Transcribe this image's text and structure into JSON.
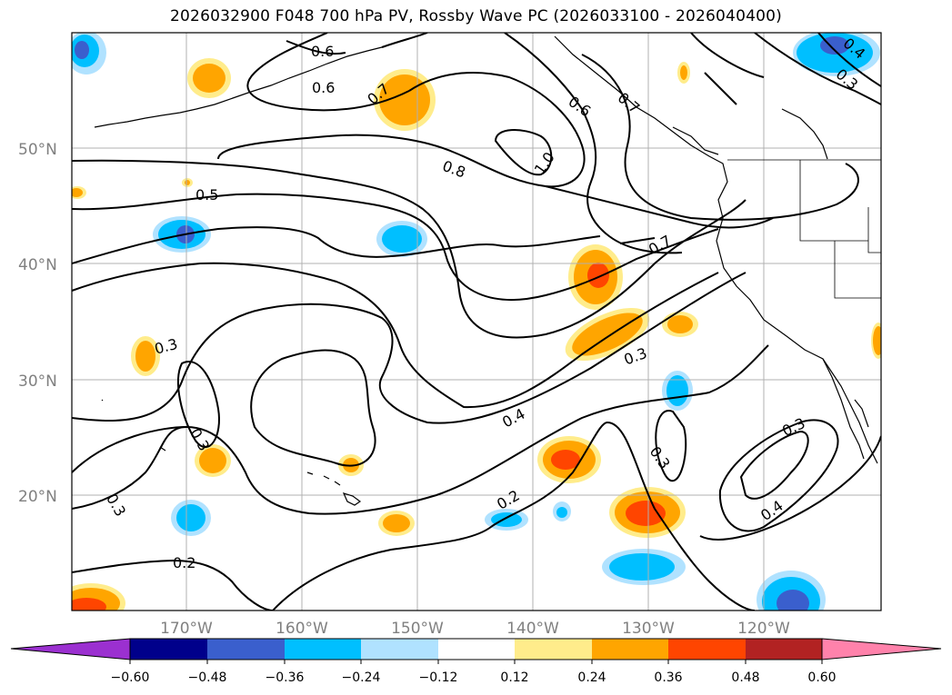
{
  "title": "2026032900 F048 700 hPa PV, Rossby Wave PC (2026033100 - 2026040400)",
  "lat_labels": [
    "50°N",
    "40°N",
    "30°N",
    "20°N"
  ],
  "lon_labels": [
    "170°W",
    "160°W",
    "150°W",
    "140°W",
    "130°W",
    "120°W"
  ],
  "contour_labels": [
    "0.6",
    "0.6",
    "0.7",
    "0.6",
    "0.7",
    "0.8",
    "1.0",
    "0.5",
    "0.7",
    "0.3",
    "0.3",
    "0.4",
    "0.3",
    "0.3",
    "0.2",
    "0.3",
    "0.4",
    "0.3",
    "0.2",
    "0.4",
    "0.3"
  ],
  "colorbar": {
    "ticks": [
      "−0.60",
      "−0.48",
      "−0.36",
      "−0.24",
      "−0.12",
      "0.12",
      "0.24",
      "0.36",
      "0.48",
      "0.60"
    ],
    "colors": {
      "under": "#9b30d0",
      "bins": [
        "#00008b",
        "#3a5fcd",
        "#00bfff",
        "#b0e2ff",
        "#ffffff",
        "#ffec8b",
        "#ffa500",
        "#ff4500",
        "#b22222"
      ],
      "over": "#ff82ab"
    }
  },
  "colors": {
    "pos_light": "#ffec8b",
    "pos_mid": "#ffa500",
    "pos_strong": "#ff4500",
    "neg_light": "#b0e2ff",
    "neg_mid": "#00bfff",
    "neg_strong": "#3a5fcd",
    "under": "#9b30d0"
  }
}
